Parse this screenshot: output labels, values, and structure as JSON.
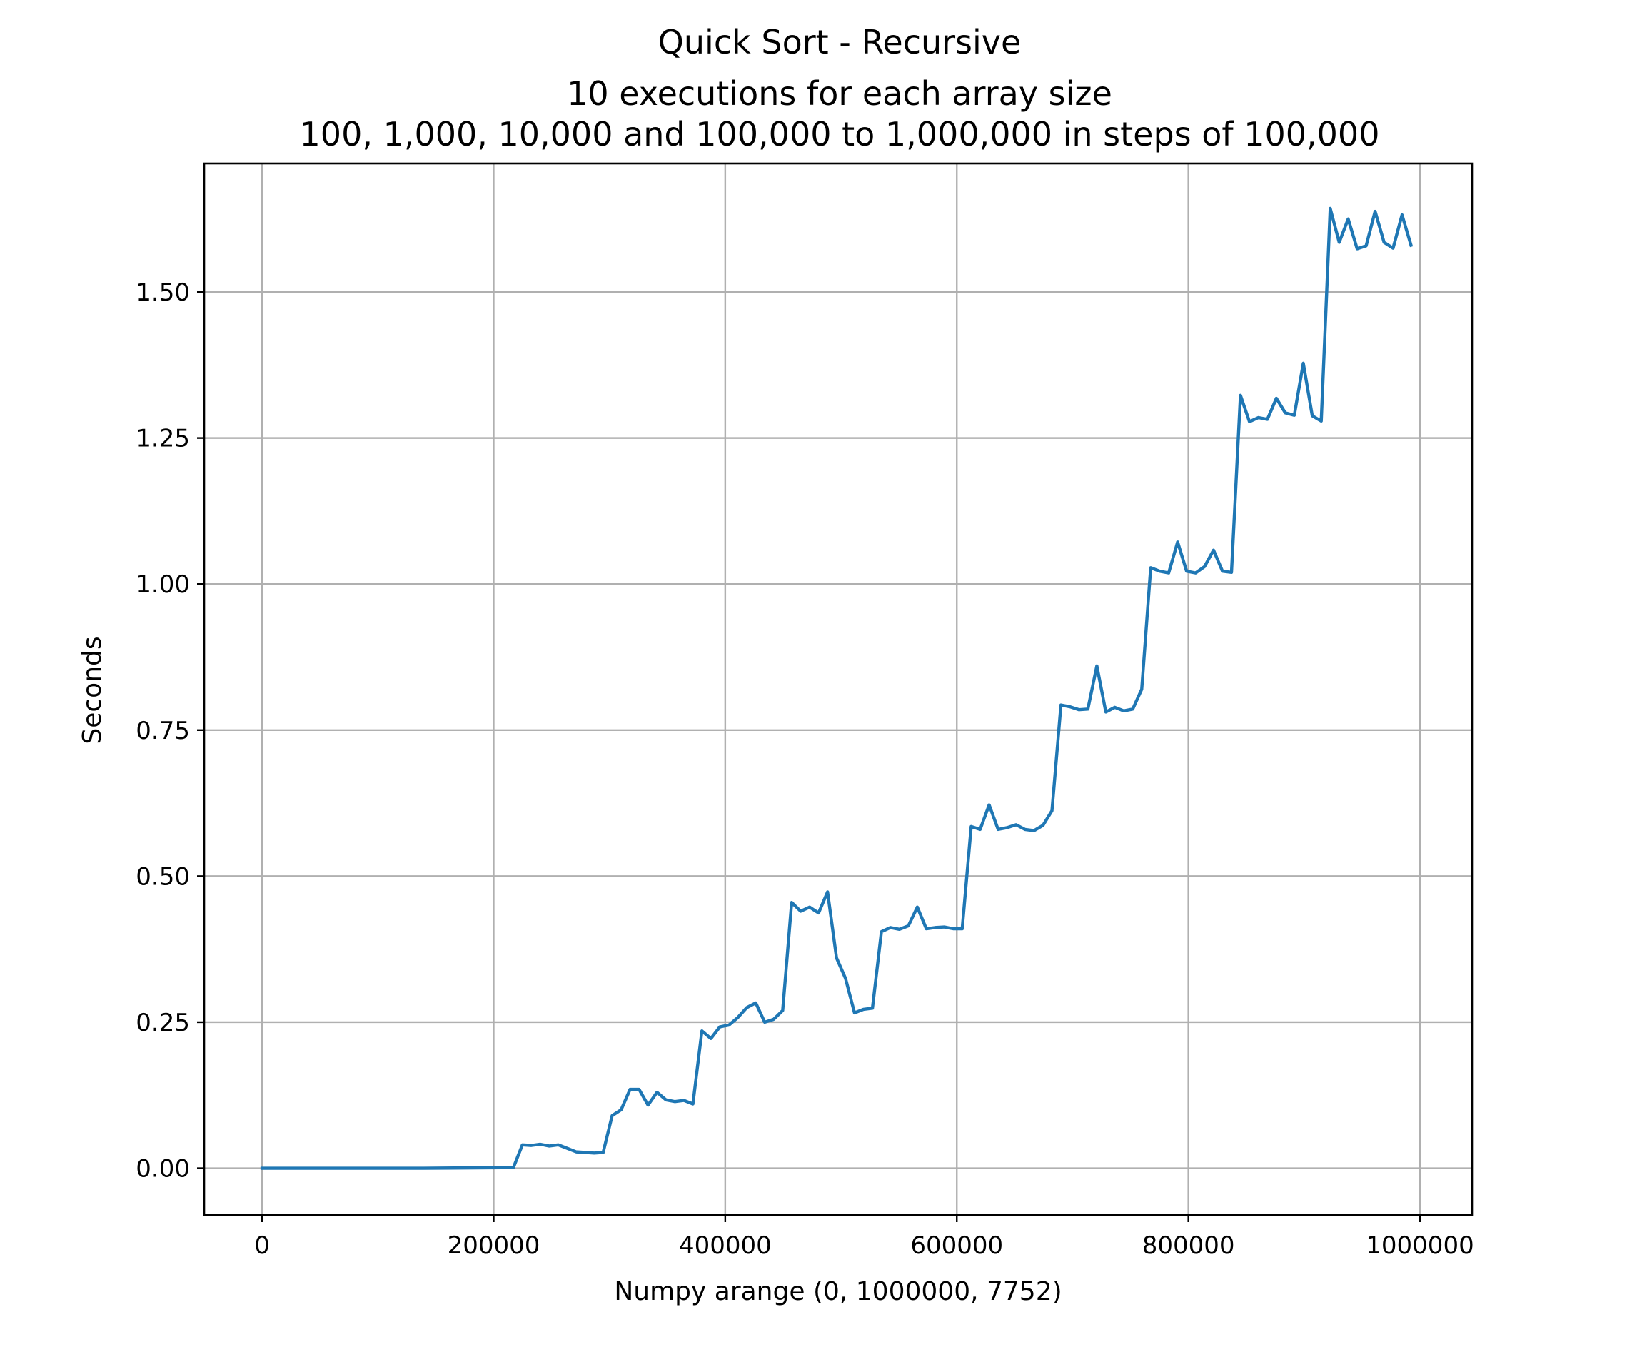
{
  "chart_data": {
    "type": "line",
    "title": "Quick Sort - Recursive",
    "subtitle_lines": [
      "10 executions for each array size",
      "100, 1,000, 10,000 and 100,000 to 1,000,000 in steps of 100,000"
    ],
    "xlabel": "Numpy arange (0, 1000000, 7752)",
    "ylabel": "Seconds",
    "xlim": [
      -50000,
      1045000
    ],
    "ylim": [
      -0.08,
      1.72
    ],
    "xticks": [
      0,
      200000,
      400000,
      600000,
      800000,
      1000000
    ],
    "xtick_labels": [
      "0",
      "200000",
      "400000",
      "600000",
      "800000",
      "1000000"
    ],
    "yticks": [
      0.0,
      0.25,
      0.5,
      0.75,
      1.0,
      1.25,
      1.5
    ],
    "ytick_labels": [
      "0.00",
      "0.25",
      "0.50",
      "0.75",
      "1.00",
      "1.25",
      "1.50"
    ],
    "grid": true,
    "line_color": "#1f77b4",
    "x": [
      0,
      139536,
      217056,
      224808,
      232560,
      240312,
      248064,
      255816,
      263568,
      271320,
      279072,
      286824,
      294576,
      302328,
      310080,
      317832,
      325584,
      333336,
      341088,
      348840,
      356592,
      364344,
      372096,
      379848,
      387600,
      395352,
      403104,
      410856,
      418608,
      426360,
      434112,
      441864,
      449616,
      457368,
      465120,
      472872,
      480624,
      488376,
      496128,
      503880,
      511632,
      519384,
      527136,
      534888,
      542640,
      550392,
      558144,
      565896,
      573648,
      581400,
      589152,
      596904,
      604656,
      612408,
      620160,
      627912,
      635664,
      643416,
      651168,
      658920,
      666672,
      674424,
      682176,
      689928,
      697680,
      705432,
      713184,
      720936,
      728688,
      736440,
      744192,
      751944,
      759696,
      767448,
      775200,
      782952,
      790704,
      798456,
      806208,
      813960,
      821712,
      829464,
      837216,
      844968,
      852720,
      860472,
      868224,
      875976,
      883728,
      891480,
      899232,
      906984,
      914736,
      922488,
      930240,
      937992,
      945744,
      953496,
      961248,
      969000,
      976752,
      984504,
      992256
    ],
    "y": [
      0.0,
      0.0,
      0.001,
      0.04,
      0.039,
      0.041,
      0.038,
      0.04,
      0.034,
      0.028,
      0.027,
      0.026,
      0.027,
      0.09,
      0.1,
      0.135,
      0.135,
      0.108,
      0.13,
      0.117,
      0.114,
      0.116,
      0.11,
      0.235,
      0.222,
      0.242,
      0.245,
      0.258,
      0.275,
      0.283,
      0.25,
      0.255,
      0.27,
      0.455,
      0.44,
      0.447,
      0.437,
      0.473,
      0.36,
      0.325,
      0.266,
      0.272,
      0.274,
      0.405,
      0.412,
      0.409,
      0.415,
      0.447,
      0.41,
      0.412,
      0.413,
      0.41,
      0.41,
      0.585,
      0.58,
      0.622,
      0.58,
      0.583,
      0.588,
      0.58,
      0.578,
      0.587,
      0.612,
      0.793,
      0.79,
      0.785,
      0.786,
      0.86,
      0.781,
      0.789,
      0.783,
      0.786,
      0.82,
      1.028,
      1.022,
      1.019,
      1.072,
      1.022,
      1.019,
      1.03,
      1.058,
      1.022,
      1.02,
      1.323,
      1.278,
      1.285,
      1.282,
      1.318,
      1.293,
      1.289,
      1.378,
      1.288,
      1.279,
      1.643,
      1.585,
      1.625,
      1.574,
      1.579,
      1.638,
      1.585,
      1.575,
      1.632,
      1.58
    ]
  }
}
